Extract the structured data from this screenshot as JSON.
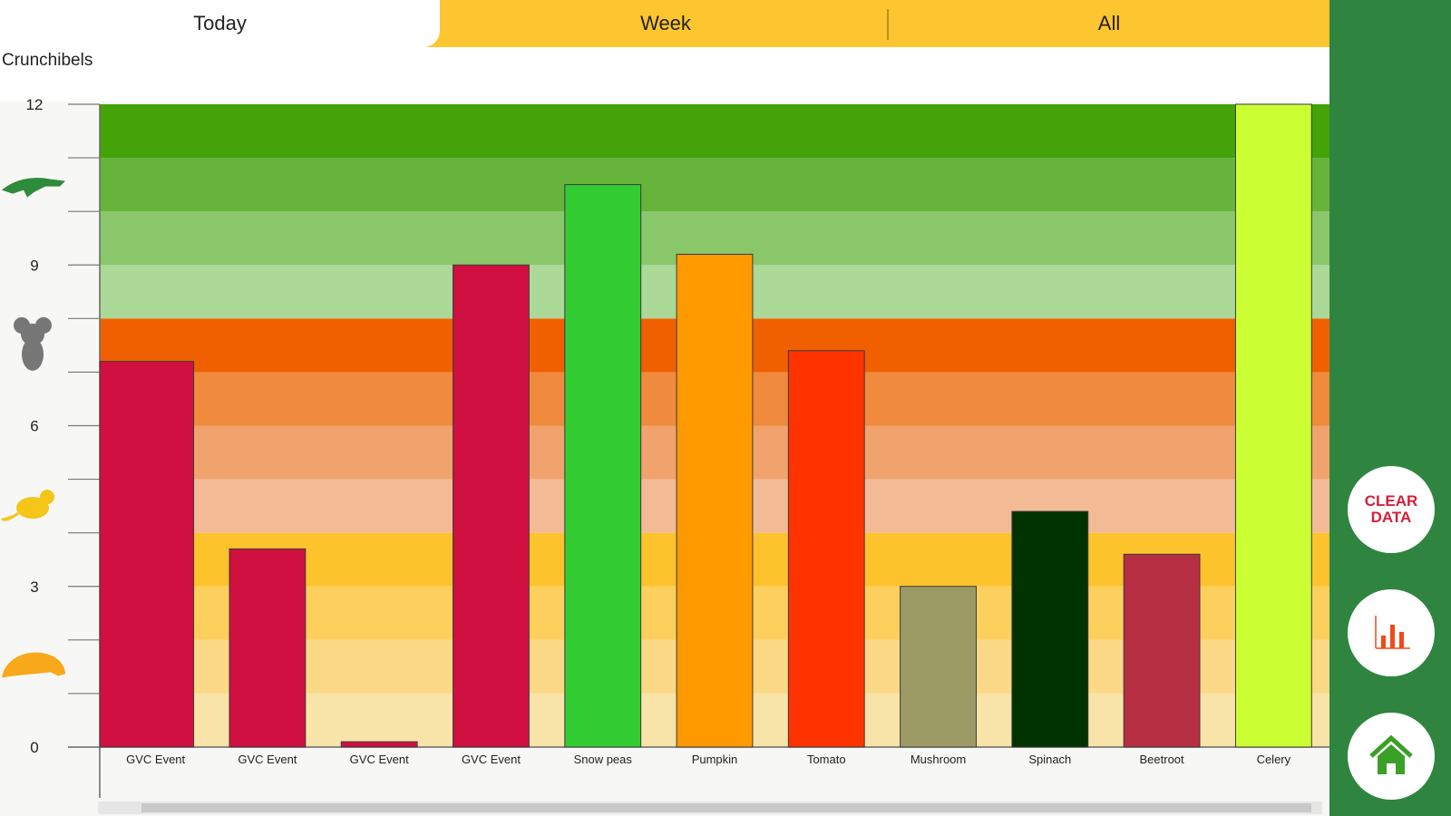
{
  "tabs": [
    {
      "label": "Today",
      "active": true
    },
    {
      "label": "Week",
      "active": false
    },
    {
      "label": "All",
      "active": false
    }
  ],
  "sidebar": {
    "clear_label_line1": "CLEAR",
    "clear_label_line2": "DATA",
    "chart_icon": "bar-chart-icon",
    "home_icon": "home-icon",
    "accent": "#2f8540"
  },
  "chart_data": {
    "type": "bar",
    "title": "",
    "xlabel": "",
    "ylabel": "Crunchibels",
    "ylim": [
      0,
      12
    ],
    "yticks": [
      0,
      3,
      6,
      9,
      12
    ],
    "categories": [
      "GVC Event",
      "GVC Event",
      "GVC Event",
      "GVC Event",
      "Snow peas",
      "Pumpkin",
      "Tomato",
      "Mushroom",
      "Spinach",
      "Beetroot",
      "Celery"
    ],
    "values": [
      7.2,
      3.7,
      0.1,
      9.0,
      10.5,
      9.2,
      7.4,
      3.0,
      4.4,
      3.6,
      12.0
    ],
    "colors": [
      "#d01040",
      "#d01040",
      "#d01040",
      "#d01040",
      "#33cc33",
      "#ff9900",
      "#ff3300",
      "#9c9a64",
      "#003300",
      "#b52e42",
      "#ccff33"
    ],
    "bands": [
      "#f8e4a8",
      "#fbd987",
      "#fdd05e",
      "#fdc32d",
      "#f2bb96",
      "#f0a36c",
      "#f08a3c",
      "#f06000",
      "#acd898",
      "#8ac66a",
      "#66b43c",
      "#44a308"
    ],
    "level_icons": [
      {
        "name": "wombat-icon",
        "level": 1.5,
        "color": "#f7a81b"
      },
      {
        "name": "mouse-icon",
        "level": 4.5,
        "color": "#f5c518"
      },
      {
        "name": "koala-icon",
        "level": 7.5,
        "color": "#777777"
      },
      {
        "name": "crocodile-icon",
        "level": 10.5,
        "color": "#2e8b3a"
      }
    ]
  }
}
